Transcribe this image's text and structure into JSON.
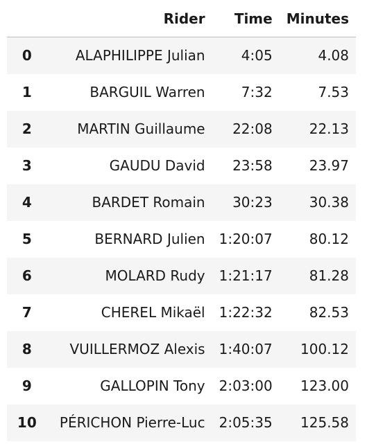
{
  "table": {
    "columns": [
      "",
      "Rider",
      "Time",
      "Minutes"
    ],
    "rows": [
      {
        "index": "0",
        "rider": "ALAPHILIPPE Julian",
        "time": "4:05",
        "minutes": "4.08"
      },
      {
        "index": "1",
        "rider": "BARGUIL Warren",
        "time": "7:32",
        "minutes": "7.53"
      },
      {
        "index": "2",
        "rider": "MARTIN Guillaume",
        "time": "22:08",
        "minutes": "22.13"
      },
      {
        "index": "3",
        "rider": "GAUDU David",
        "time": "23:58",
        "minutes": "23.97"
      },
      {
        "index": "4",
        "rider": "BARDET Romain",
        "time": "30:23",
        "minutes": "30.38"
      },
      {
        "index": "5",
        "rider": "BERNARD Julien",
        "time": "1:20:07",
        "minutes": "80.12"
      },
      {
        "index": "6",
        "rider": "MOLARD Rudy",
        "time": "1:21:17",
        "minutes": "81.28"
      },
      {
        "index": "7",
        "rider": "CHEREL Mikaël",
        "time": "1:22:32",
        "minutes": "82.53"
      },
      {
        "index": "8",
        "rider": "VUILLERMOZ Alexis",
        "time": "1:40:07",
        "minutes": "100.12"
      },
      {
        "index": "9",
        "rider": "GALLOPIN Tony",
        "time": "2:03:00",
        "minutes": "123.00"
      },
      {
        "index": "10",
        "rider": "PÉRICHON Pierre-Luc",
        "time": "2:05:35",
        "minutes": "125.58"
      }
    ]
  }
}
